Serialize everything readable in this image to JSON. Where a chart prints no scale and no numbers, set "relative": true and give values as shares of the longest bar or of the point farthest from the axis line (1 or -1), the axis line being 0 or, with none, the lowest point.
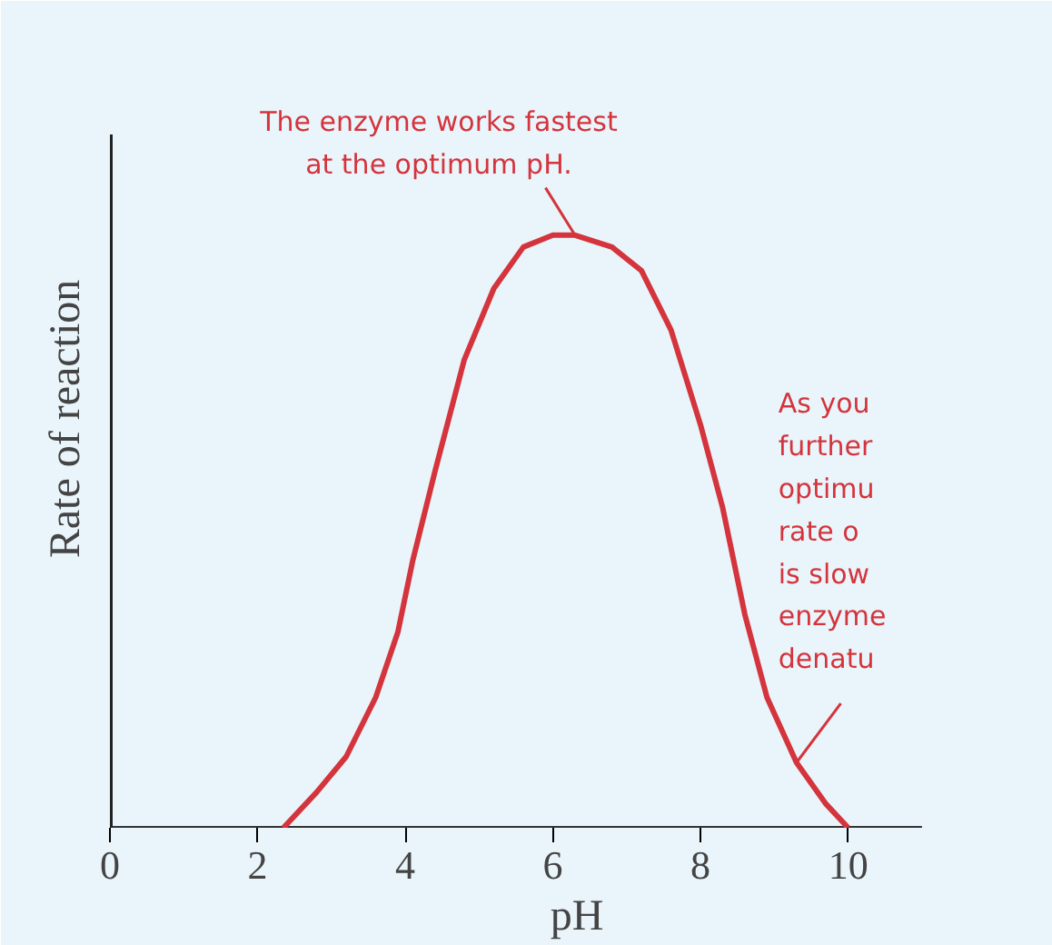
{
  "chart_data": {
    "type": "line",
    "relative": true,
    "xlabel": "pH",
    "ylabel": "Rate of reaction",
    "x": [
      2.35,
      2.8,
      3.2,
      3.6,
      3.9,
      4.1,
      4.4,
      4.8,
      5.2,
      5.6,
      6.0,
      6.3,
      6.8,
      7.2,
      7.6,
      8.0,
      8.3,
      8.6,
      8.9,
      9.3,
      9.7,
      10.0
    ],
    "series": [
      {
        "color": "#d4343c",
        "values": [
          0,
          0.06,
          0.12,
          0.22,
          0.33,
          0.45,
          0.6,
          0.79,
          0.91,
          0.98,
          1.0,
          1.0,
          0.98,
          0.94,
          0.84,
          0.68,
          0.54,
          0.36,
          0.22,
          0.11,
          0.04,
          0
        ]
      }
    ],
    "xlim": [
      0,
      11
    ],
    "xticks": [
      0,
      2,
      4,
      6,
      8,
      10
    ],
    "grid": false,
    "marker": "none",
    "line_style": "solid",
    "annotations": [
      {
        "text": "The enzyme works fastest\nat the optimum pH.",
        "x": 6.3,
        "y": 1.0
      },
      {
        "text": "As you\nfurther\noptimu\nrate o\nis slow\nenzyme\ndenatu",
        "x": 9.3,
        "y": 0.11
      }
    ]
  }
}
